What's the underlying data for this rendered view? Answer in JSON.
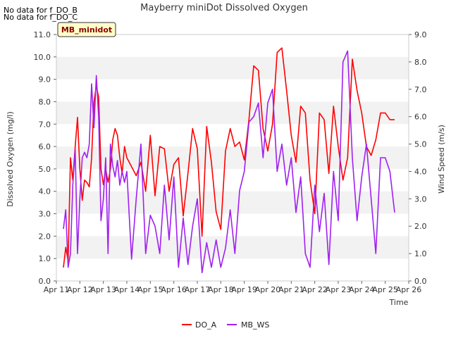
{
  "no_data_notes": [
    "No data for f_DO_B",
    "No data for f_DO_C"
  ],
  "chart_data": {
    "type": "line",
    "title": "Mayberry miniDot Dissolved Oxygen",
    "site_badge": "MB_minidot",
    "xlabel": "Time",
    "ylabel_left": "Dissolved Oxygen (mg/l)",
    "ylabel_right": "Wind Speed (m/s)",
    "x_ticks": [
      "Apr 11",
      "Apr 12",
      "Apr 13",
      "Apr 14",
      "Apr 15",
      "Apr 16",
      "Apr 17",
      "Apr 18",
      "Apr 19",
      "Apr 20",
      "Apr 21",
      "Apr 22",
      "Apr 23",
      "Apr 24",
      "Apr 25",
      "Apr 26"
    ],
    "xlim_days": [
      11,
      26
    ],
    "ylim_left": [
      0,
      11
    ],
    "ylim_right": [
      0,
      9
    ],
    "y_ticks_left": [
      "0.0",
      "1.0",
      "2.0",
      "3.0",
      "4.0",
      "5.0",
      "6.0",
      "7.0",
      "8.0",
      "9.0",
      "10.0",
      "11.0"
    ],
    "y_ticks_right": [
      "0.0",
      "1.0",
      "2.0",
      "3.0",
      "4.0",
      "5.0",
      "6.0",
      "7.0",
      "8.0",
      "9.0"
    ],
    "grid": "horizontal alternating bands",
    "legend_position": "bottom-center",
    "series": [
      {
        "name": "DO_A",
        "axis": "left",
        "color": "#ff0000",
        "x": [
          11.3,
          11.4,
          11.5,
          11.6,
          11.7,
          11.8,
          11.9,
          12.0,
          12.1,
          12.2,
          12.3,
          12.4,
          12.5,
          12.6,
          12.7,
          12.8,
          12.9,
          13.0,
          13.1,
          13.2,
          13.3,
          13.4,
          13.5,
          13.6,
          13.7,
          13.8,
          13.9,
          14.0,
          14.2,
          14.4,
          14.6,
          14.8,
          15.0,
          15.2,
          15.4,
          15.6,
          15.8,
          16.0,
          16.2,
          16.4,
          16.6,
          16.8,
          17.0,
          17.2,
          17.4,
          17.6,
          17.8,
          18.0,
          18.2,
          18.4,
          18.6,
          18.8,
          19.0,
          19.2,
          19.4,
          19.6,
          19.8,
          20.0,
          20.2,
          20.4,
          20.6,
          20.8,
          21.0,
          21.2,
          21.4,
          21.6,
          21.8,
          22.0,
          22.2,
          22.4,
          22.6,
          22.8,
          23.0,
          23.2,
          23.4,
          23.6,
          23.8,
          24.0,
          24.2,
          24.4,
          24.6,
          24.8,
          25.0,
          25.2,
          25.4
        ],
        "y": [
          0.6,
          1.5,
          0.9,
          5.5,
          4.5,
          6.0,
          7.3,
          5.0,
          3.6,
          4.5,
          4.4,
          4.2,
          5.5,
          8.0,
          8.7,
          8.2,
          5.0,
          4.3,
          5.0,
          4.4,
          5.0,
          6.3,
          6.8,
          6.5,
          5.5,
          4.8,
          6.0,
          5.5,
          5.1,
          4.7,
          5.3,
          4.0,
          6.5,
          3.8,
          6.0,
          5.9,
          4.0,
          5.2,
          5.5,
          2.9,
          4.8,
          6.8,
          5.9,
          2.0,
          6.9,
          5.3,
          3.1,
          2.3,
          5.8,
          6.8,
          6.0,
          6.2,
          5.4,
          7.2,
          9.6,
          9.4,
          6.8,
          5.8,
          7.0,
          10.2,
          10.4,
          8.5,
          6.5,
          5.3,
          7.8,
          7.5,
          4.5,
          3.0,
          7.5,
          7.2,
          4.8,
          7.8,
          6.0,
          4.5,
          5.5,
          9.9,
          8.5,
          7.5,
          6.0,
          5.6,
          6.3,
          7.5,
          7.5,
          7.2,
          7.2
        ]
      },
      {
        "name": "MB_WS",
        "axis": "right",
        "color": "#a020f0",
        "x": [
          11.3,
          11.4,
          11.5,
          11.6,
          11.7,
          11.8,
          11.9,
          12.0,
          12.1,
          12.2,
          12.3,
          12.4,
          12.5,
          12.6,
          12.7,
          12.8,
          12.9,
          13.0,
          13.1,
          13.2,
          13.3,
          13.4,
          13.5,
          13.6,
          13.7,
          13.8,
          13.9,
          14.0,
          14.2,
          14.4,
          14.6,
          14.8,
          15.0,
          15.2,
          15.4,
          15.6,
          15.8,
          16.0,
          16.2,
          16.4,
          16.6,
          16.8,
          17.0,
          17.2,
          17.4,
          17.6,
          17.8,
          18.0,
          18.2,
          18.4,
          18.6,
          18.8,
          19.0,
          19.2,
          19.4,
          19.6,
          19.8,
          20.0,
          20.2,
          20.4,
          20.6,
          20.8,
          21.0,
          21.2,
          21.4,
          21.6,
          21.8,
          22.0,
          22.2,
          22.4,
          22.6,
          22.8,
          23.0,
          23.2,
          23.4,
          23.6,
          23.8,
          24.0,
          24.2,
          24.4,
          24.6,
          24.8,
          25.0,
          25.2,
          25.4
        ],
        "y": [
          1.9,
          2.6,
          0.5,
          1.0,
          3.5,
          4.8,
          1.0,
          3.0,
          4.5,
          4.7,
          4.5,
          5.0,
          7.2,
          5.6,
          7.5,
          6.0,
          2.2,
          3.0,
          4.5,
          1.0,
          5.0,
          4.2,
          3.8,
          4.4,
          3.5,
          4.0,
          3.6,
          4.0,
          0.8,
          3.0,
          5.0,
          1.0,
          2.4,
          2.0,
          1.0,
          3.5,
          1.5,
          3.8,
          0.5,
          2.3,
          0.6,
          2.0,
          3.0,
          0.3,
          1.4,
          0.5,
          1.5,
          0.5,
          1.2,
          2.6,
          1.0,
          3.3,
          4.0,
          5.8,
          6.0,
          6.5,
          4.5,
          6.5,
          7.0,
          4.0,
          5.0,
          3.5,
          4.5,
          2.5,
          3.8,
          1.0,
          0.5,
          3.5,
          1.8,
          3.2,
          0.6,
          4.0,
          2.2,
          8.0,
          8.4,
          4.5,
          2.2,
          3.8,
          5.0,
          3.0,
          1.0,
          4.5,
          4.5,
          4.0,
          2.5
        ]
      }
    ]
  }
}
